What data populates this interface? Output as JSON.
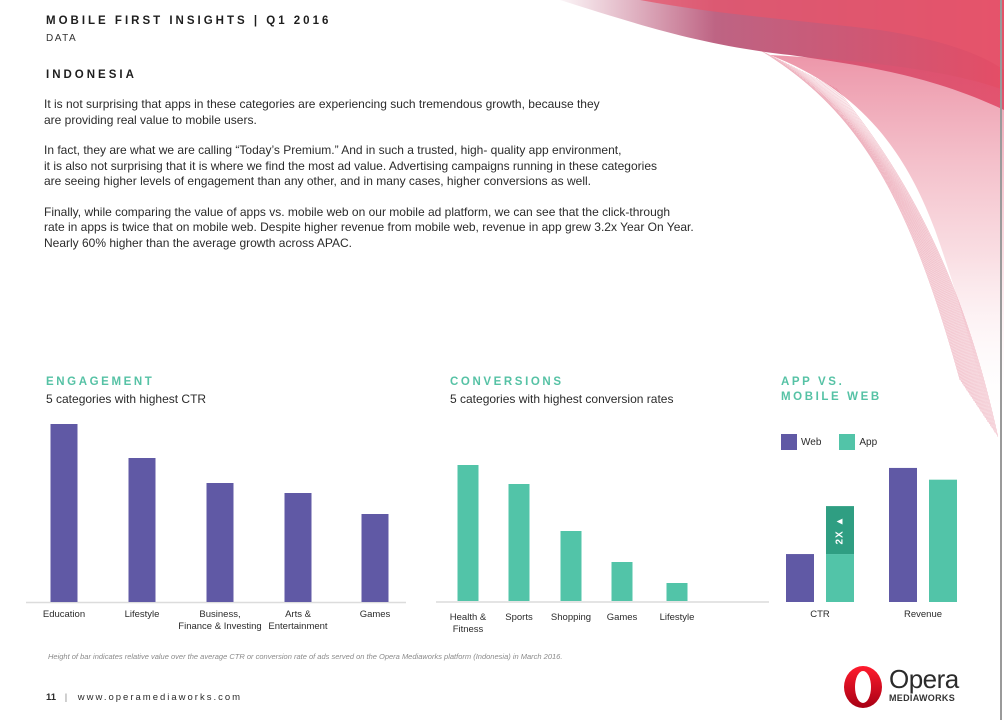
{
  "header": {
    "title": "MOBILE FIRST INSIGHTS | Q1 2016",
    "subtitle": "DATA"
  },
  "section_title": "INDONESIA",
  "paragraphs": [
    [
      "It is not surprising that apps in these categories are experiencing such tremendous growth, because they",
      "are providing real value to mobile users."
    ],
    [
      "In fact, they are what we are calling “Today’s Premium.” And in such a trusted, high- quality app environment,",
      "it is also not surprising that it is where we find the most ad value. Advertising campaigns running in these categories",
      "are seeing higher levels of engagement than any other, and in many cases, higher conversions as well."
    ],
    [
      "Finally, while comparing the value of apps vs. mobile web on our mobile ad platform, we can see that the click-through",
      "rate in apps is twice that on mobile web. Despite higher revenue from mobile web, revenue in app grew 3.2x Year On Year.",
      "Nearly 60% higher than the average growth across APAC."
    ]
  ],
  "colors": {
    "purple": "#6059a5",
    "teal": "#52c4a8",
    "teal_dark": "#2f9e82",
    "heading_teal": "#56c2a5",
    "brand_red": "#e0203a"
  },
  "chart_data": [
    {
      "type": "bar",
      "title": "ENGAGEMENT",
      "subtitle": "5 categories with highest CTR",
      "categories": [
        "Education",
        "Lifestyle",
        "Business,\nFinance & Investing",
        "Arts &\nEntertainment",
        "Games"
      ],
      "values": [
        178,
        144,
        119,
        109,
        88
      ],
      "value_note": "relative height (no axis shown)",
      "xlabel": "",
      "ylabel": "",
      "ylim": [
        0,
        180
      ],
      "grid": false,
      "color": "#6059a5"
    },
    {
      "type": "bar",
      "title": "CONVERSIONS",
      "subtitle": "5 categories with highest conversion rates",
      "categories": [
        "Health &\nFitness",
        "Sports",
        "Shopping",
        "Games",
        "Lifestyle"
      ],
      "values": [
        136,
        117,
        70,
        39,
        18
      ],
      "value_note": "relative height (no axis shown)",
      "xlabel": "",
      "ylabel": "",
      "ylim": [
        0,
        180
      ],
      "grid": false,
      "color": "#52c4a8"
    },
    {
      "type": "bar",
      "title": "APP VS.\nMOBILE WEB",
      "categories": [
        "CTR",
        "Revenue"
      ],
      "series": [
        {
          "name": "Web",
          "values": [
            49,
            137
          ],
          "color": "#6059a5"
        },
        {
          "name": "App",
          "values": [
            98,
            125
          ],
          "color": "#52c4a8"
        }
      ],
      "annotation": {
        "category": "CTR",
        "series": "App",
        "label": "2X ▲"
      },
      "legend": "top-left",
      "ylim": [
        0,
        140
      ],
      "grid": false
    }
  ],
  "footnote": "Height of bar indicates relative value over the average CTR or conversion rate of ads served on the Opera Mediaworks platform (Indonesia) in March 2016.",
  "footer": {
    "page_number": "11",
    "separator": "|",
    "url": "www.operamediaworks.com"
  },
  "logo": {
    "name": "Opera",
    "sub": "MEDIAWORKS",
    "icon": "opera-o-logo-icon"
  }
}
